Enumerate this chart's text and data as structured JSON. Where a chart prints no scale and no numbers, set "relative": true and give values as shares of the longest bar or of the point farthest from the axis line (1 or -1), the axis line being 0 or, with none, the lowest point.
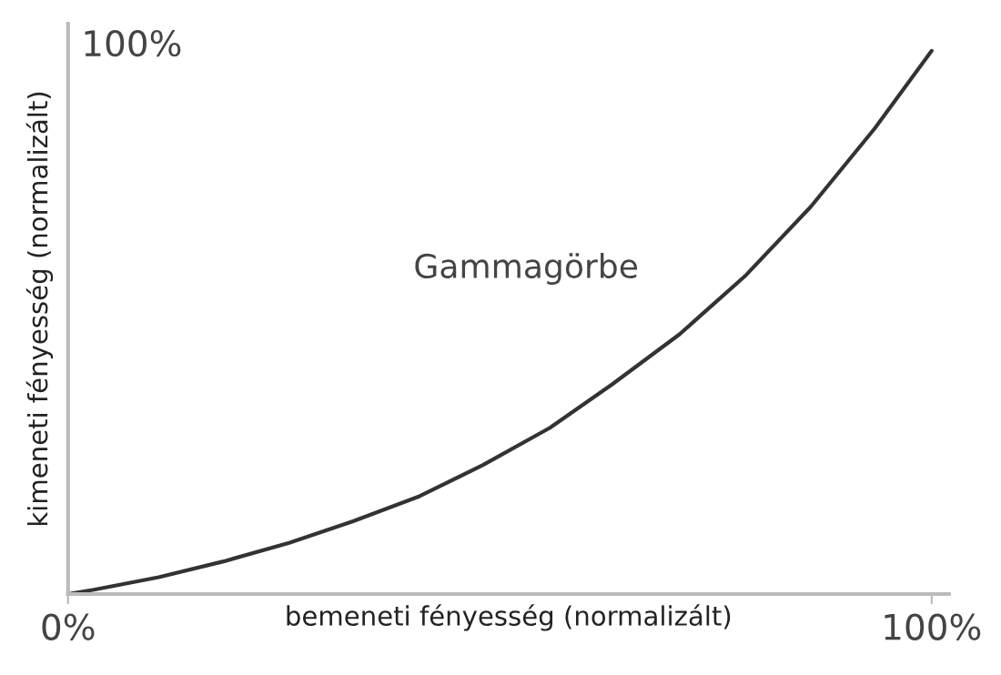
{
  "chart_data": {
    "type": "line",
    "xlabel": "bemeneti fényesség (normalizált)",
    "ylabel": "kimeneti fényesség (normalizált)",
    "annotations": [
      "100%",
      "Gammagörbe"
    ],
    "relative": true,
    "series": [
      {
        "color": "#333333",
        "x": [
          0,
          3,
          10.5,
          18,
          25.6,
          33,
          40.7,
          48,
          55.8,
          63,
          70.8,
          78.5,
          86,
          93.4,
          100
        ],
        "values": [
          0,
          0.008,
          0.031,
          0.06,
          0.094,
          0.134,
          0.18,
          0.237,
          0.306,
          0.386,
          0.478,
          0.587,
          0.713,
          0.857,
          1
        ]
      }
    ],
    "xlim": [
      0,
      102
    ],
    "xticks": [
      {
        "value": 0,
        "label": "0%"
      },
      {
        "value": 100,
        "label": "100%"
      }
    ],
    "grid": false,
    "legend": false,
    "marker": "none",
    "line_style": "solid"
  }
}
